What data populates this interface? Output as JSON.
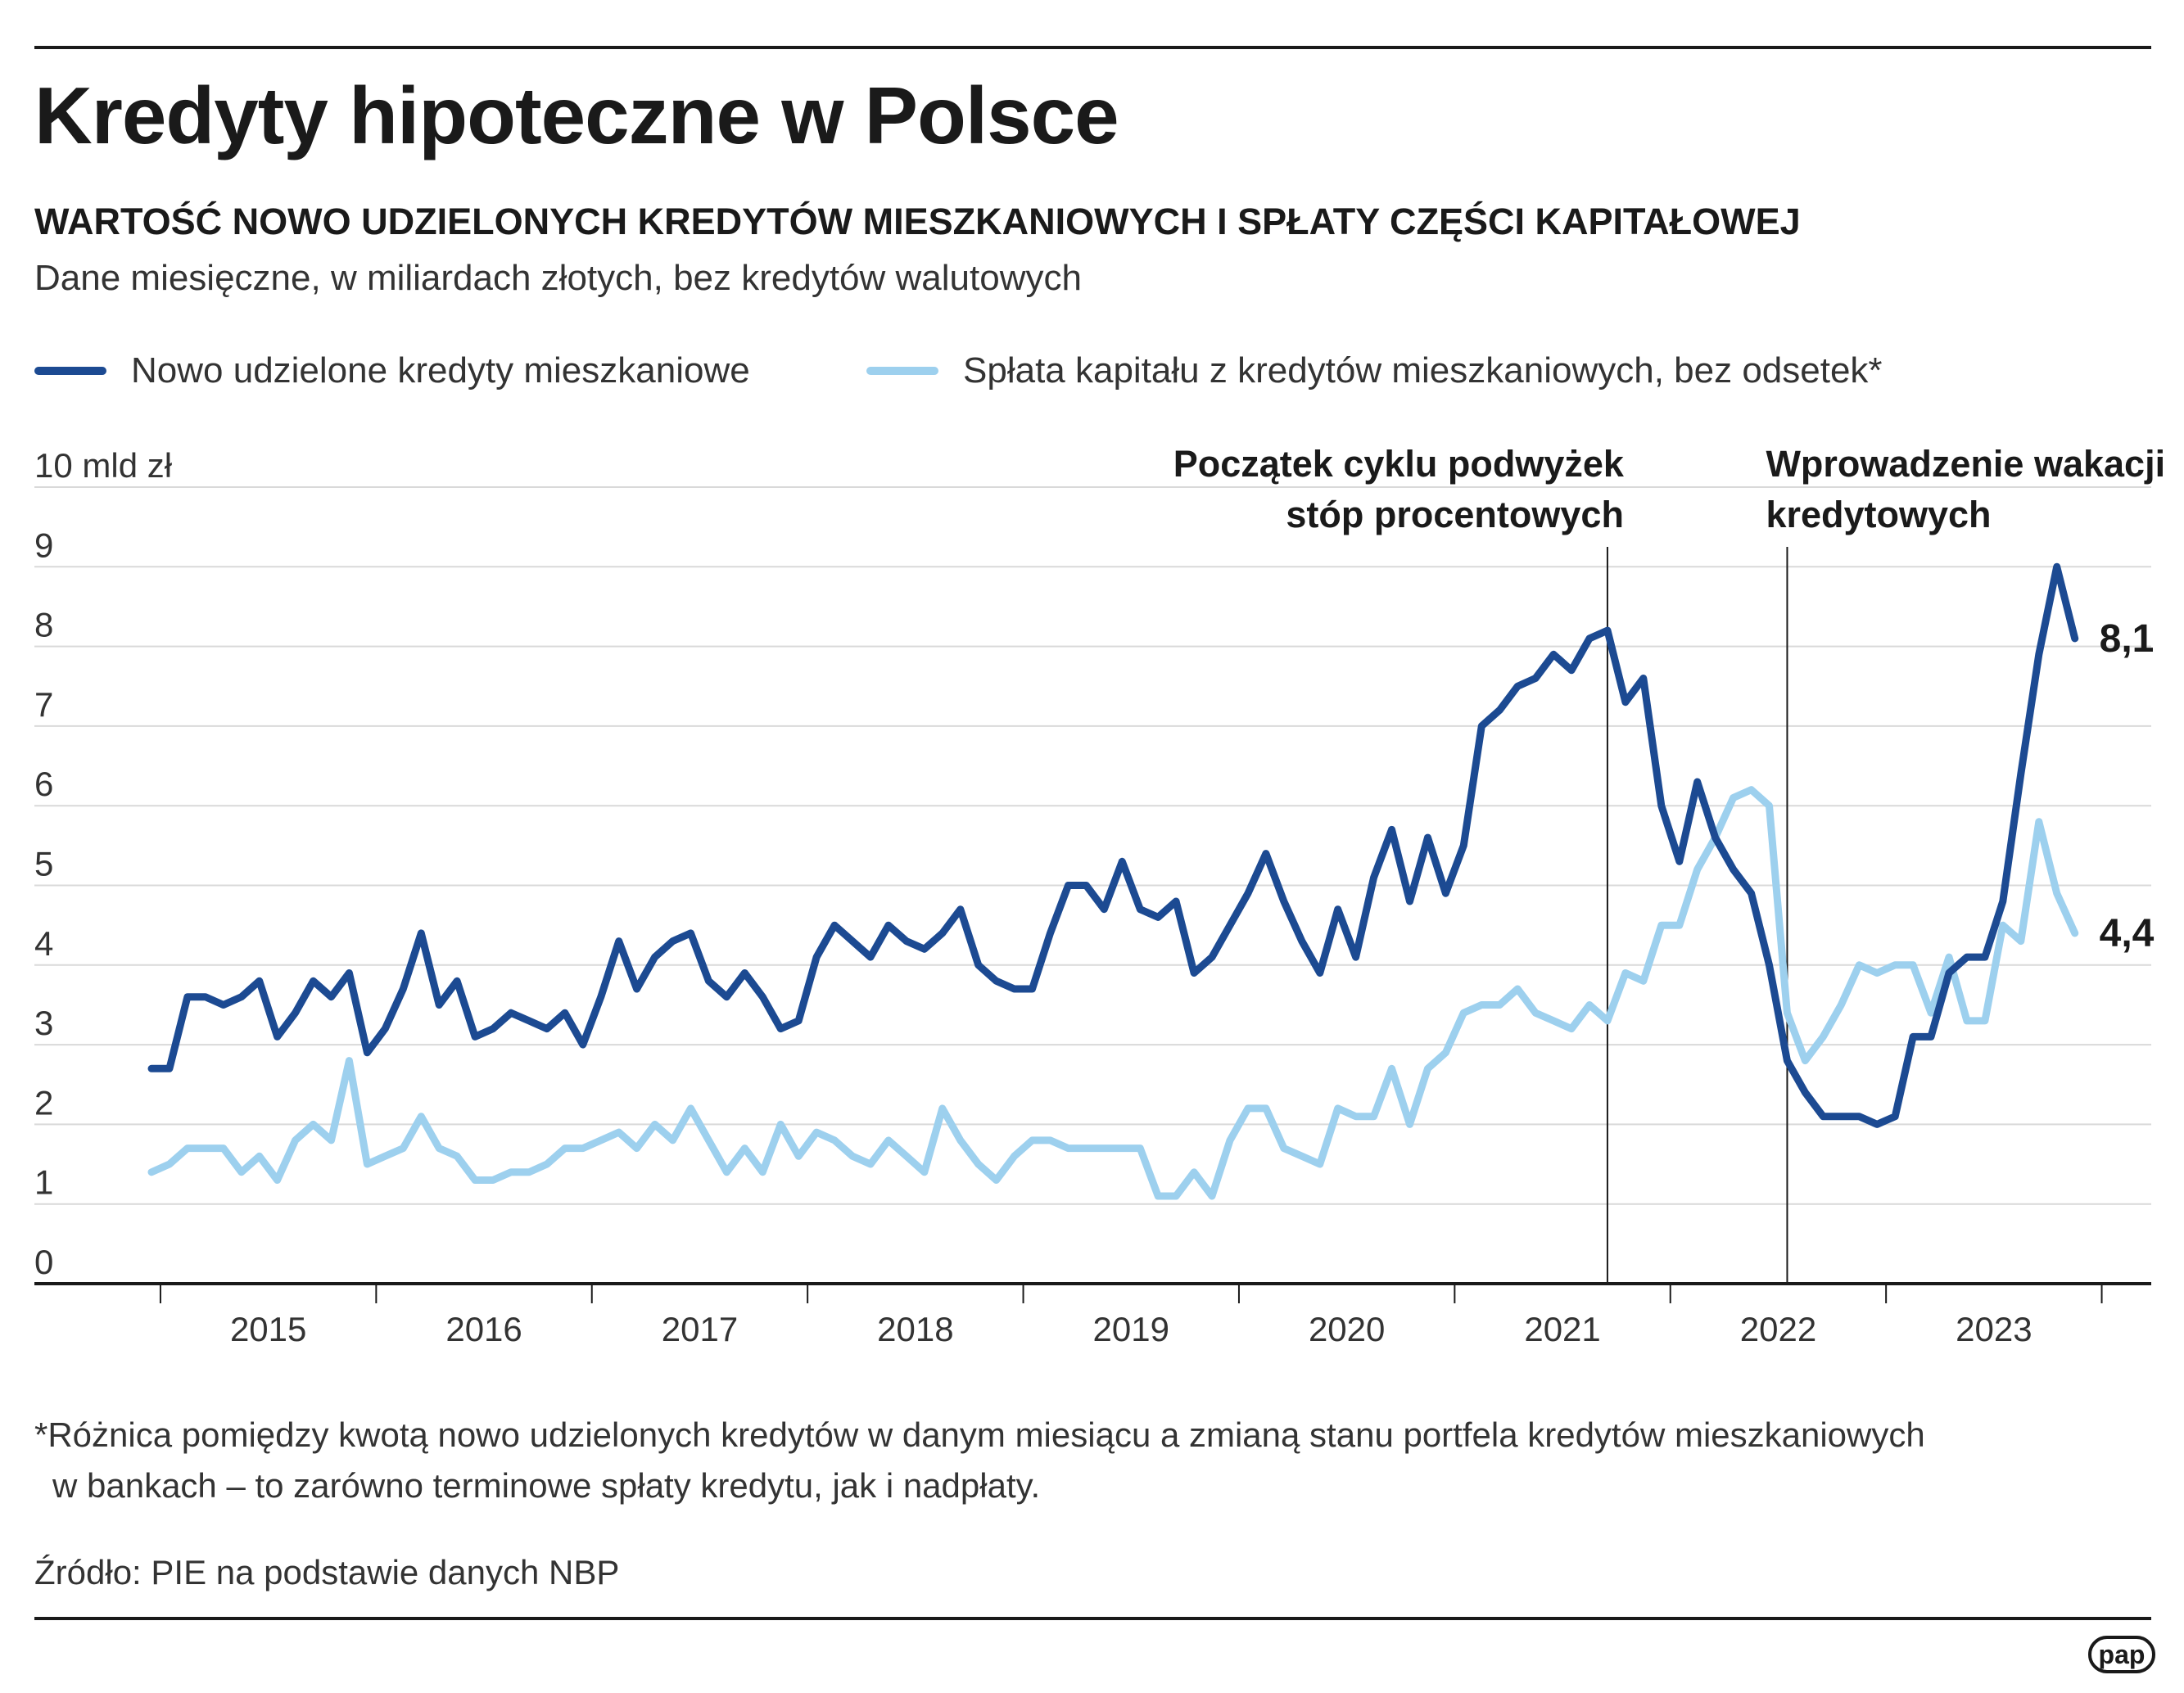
{
  "title": "Kredyty hipoteczne w Polsce",
  "subtitle": "WARTOŚĆ NOWO UDZIELONYCH KREDYTÓW MIESZKANIOWYCH I SPŁATY CZĘŚCI KAPITAŁOWEJ",
  "description": "Dane miesięczne, w miliardach złotych, bez kredytów walutowych",
  "footnote": {
    "line1": "*Różnica pomiędzy kwotą nowo udzielonych kredytów w danym miesiącu a zmianą stanu portfela kredytów mieszkaniowych",
    "line2": "w bankach – to zarówno terminowe spłaty kredytu, jak i nadpłaty."
  },
  "source": "Źródło: PIE na podstawie danych NBP",
  "logo": "pap",
  "chart_data": {
    "type": "line",
    "y_unit_label": "10 mld zł",
    "ylim": [
      0,
      10
    ],
    "yticks": [
      0,
      1,
      2,
      3,
      4,
      5,
      6,
      7,
      8,
      9,
      10
    ],
    "ytick_labels": [
      "0",
      "1",
      "2",
      "3",
      "4",
      "5",
      "6",
      "7",
      "8",
      "9",
      "10 mld zł"
    ],
    "x_start": "2014-12",
    "x_year_labels": [
      "2015",
      "2016",
      "2017",
      "2018",
      "2019",
      "2020",
      "2021",
      "2022",
      "2023"
    ],
    "grid": true,
    "legend_position": "top-left",
    "annotations": [
      {
        "at": "2021-09",
        "lines": [
          "Początek cyklu podwyżek",
          "stóp procentowych"
        ],
        "align": "right"
      },
      {
        "at": "2022-07",
        "lines": [
          "Wprowadzenie wakacji",
          "kredytowych"
        ],
        "align": "left"
      }
    ],
    "series": [
      {
        "name": "Nowo udzielone kredyty mieszkaniowe",
        "color": "#1c4a92",
        "end_label": "8,1",
        "values": [
          2.7,
          2.7,
          3.6,
          3.6,
          3.5,
          3.6,
          3.8,
          3.1,
          3.4,
          3.8,
          3.6,
          3.9,
          2.9,
          3.2,
          3.7,
          4.4,
          3.5,
          3.8,
          3.1,
          3.2,
          3.4,
          3.3,
          3.2,
          3.4,
          3.0,
          3.6,
          4.3,
          3.7,
          4.1,
          4.3,
          4.4,
          3.8,
          3.6,
          3.9,
          3.6,
          3.2,
          3.3,
          4.1,
          4.5,
          4.3,
          4.1,
          4.5,
          4.3,
          4.2,
          4.4,
          4.7,
          4.0,
          3.8,
          3.7,
          3.7,
          4.4,
          5.0,
          5.0,
          4.7,
          5.3,
          4.7,
          4.6,
          4.8,
          3.9,
          4.1,
          4.5,
          4.9,
          5.4,
          4.8,
          4.3,
          3.9,
          4.7,
          4.1,
          5.1,
          5.7,
          4.8,
          5.6,
          4.9,
          5.5,
          7.0,
          7.2,
          7.5,
          7.6,
          7.9,
          7.7,
          8.1,
          8.2,
          7.3,
          7.6,
          6.0,
          5.3,
          6.3,
          5.6,
          5.2,
          4.9,
          4.0,
          2.8,
          2.4,
          2.1,
          2.1,
          2.1,
          2.0,
          2.1,
          3.1,
          3.1,
          3.9,
          4.1,
          4.1,
          4.8,
          6.4,
          7.9,
          9.0,
          8.1
        ]
      },
      {
        "name": "Spłata kapitału z kredytów mieszkaniowych, bez odsetek*",
        "color": "#9dd0ee",
        "end_label": "4,4",
        "values": [
          1.4,
          1.5,
          1.7,
          1.7,
          1.7,
          1.4,
          1.6,
          1.3,
          1.8,
          2.0,
          1.8,
          2.8,
          1.5,
          1.6,
          1.7,
          2.1,
          1.7,
          1.6,
          1.3,
          1.3,
          1.4,
          1.4,
          1.5,
          1.7,
          1.7,
          1.8,
          1.9,
          1.7,
          2.0,
          1.8,
          2.2,
          1.8,
          1.4,
          1.7,
          1.4,
          2.0,
          1.6,
          1.9,
          1.8,
          1.6,
          1.5,
          1.8,
          1.6,
          1.4,
          2.2,
          1.8,
          1.5,
          1.3,
          1.6,
          1.8,
          1.8,
          1.7,
          1.7,
          1.7,
          1.7,
          1.7,
          1.1,
          1.1,
          1.4,
          1.1,
          1.8,
          2.2,
          2.2,
          1.7,
          1.6,
          1.5,
          2.2,
          2.1,
          2.1,
          2.7,
          2.0,
          2.7,
          2.9,
          3.4,
          3.5,
          3.5,
          3.7,
          3.4,
          3.3,
          3.2,
          3.5,
          3.3,
          3.9,
          3.8,
          4.5,
          4.5,
          5.2,
          5.6,
          6.1,
          6.2,
          6.0,
          3.4,
          2.8,
          3.1,
          3.5,
          4.0,
          3.9,
          4.0,
          4.0,
          3.4,
          4.1,
          3.3,
          3.3,
          4.5,
          4.3,
          5.8,
          4.9,
          4.4
        ]
      }
    ]
  }
}
